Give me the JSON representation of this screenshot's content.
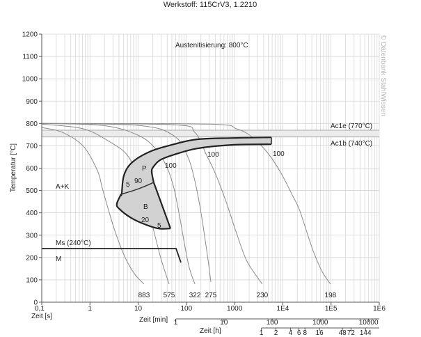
{
  "chart_data": {
    "type": "line",
    "title": "Werkstoff: 115CrV3, 1.2210",
    "subtitle": "Austenitisierung: 800°C",
    "copyright": "© Datenbank StahlWissen",
    "xlabel": "Zeit [s]",
    "ylabel": "Temperatur [°C]",
    "x_scale": "log",
    "xlim": [
      0.1,
      1000000
    ],
    "ylim": [
      0,
      1200
    ],
    "grid": true,
    "yticks": [
      "0",
      "100",
      "200",
      "300",
      "400",
      "500",
      "600",
      "700",
      "800",
      "900",
      "1000",
      "1100",
      "1200"
    ],
    "xticks": [
      {
        "value": 0.1,
        "label": "0,1"
      },
      {
        "value": 1,
        "label": "1"
      },
      {
        "value": 10,
        "label": "10"
      },
      {
        "value": 100,
        "label": "100"
      },
      {
        "value": 1000,
        "label": "1000"
      },
      {
        "value": 10000,
        "label": "1E4"
      },
      {
        "value": 100000,
        "label": "1E5"
      },
      {
        "value": 1000000,
        "label": "1E6"
      }
    ],
    "minutes_axis": {
      "label": "Zeit [min]",
      "ticks": [
        {
          "value": 1,
          "label": "1"
        },
        {
          "value": 10,
          "label": "10"
        },
        {
          "value": 100,
          "label": "100"
        },
        {
          "value": 1000,
          "label": "1000"
        },
        {
          "value": 10000,
          "label": "10000"
        }
      ]
    },
    "hours_axis": {
      "label": "Zeit [h]",
      "ticks": [
        {
          "value": 1,
          "label": "1"
        },
        {
          "value": 2,
          "label": "2"
        },
        {
          "value": 4,
          "label": "4"
        },
        {
          "value": 6,
          "label": "6"
        },
        {
          "value": 8,
          "label": "8"
        },
        {
          "value": 16,
          "label": "16"
        },
        {
          "value": 48,
          "label": "48"
        },
        {
          "value": 72,
          "label": "72"
        },
        {
          "value": 144,
          "label": "144"
        }
      ]
    },
    "reference_lines": [
      {
        "label": "Ac1e (770°C)",
        "T": 770
      },
      {
        "label": "Ac1b (740°C)",
        "T": 740
      },
      {
        "label": "Ms (240°C)",
        "T": 240,
        "t_end": 61,
        "tail": [
          [
            61,
            237
          ],
          [
            77,
            178
          ]
        ]
      }
    ],
    "cooling_curves": [
      {
        "hardness": "883",
        "points": [
          [
            0.1,
            782
          ],
          [
            0.27,
            760
          ],
          [
            0.73,
            698
          ],
          [
            1.43,
            589
          ],
          [
            1.8,
            511
          ],
          [
            2.5,
            402
          ],
          [
            3.5,
            302
          ],
          [
            5.4,
            199
          ],
          [
            8.3,
            128
          ],
          [
            13.2,
            81
          ]
        ]
      },
      {
        "hardness": "575",
        "points": [
          [
            0.1,
            797
          ],
          [
            0.73,
            776
          ],
          [
            2.8,
            713
          ],
          [
            6.0,
            657
          ],
          [
            10.5,
            558
          ],
          [
            13.2,
            511
          ],
          [
            17.3,
            417
          ],
          [
            20.4,
            333
          ],
          [
            25.7,
            246
          ],
          [
            31.3,
            178
          ],
          [
            43.8,
            81
          ]
        ]
      },
      {
        "hardness": "322",
        "points": [
          [
            0.1,
            800
          ],
          [
            2,
            790
          ],
          [
            10.5,
            745
          ],
          [
            24,
            682
          ],
          [
            39.5,
            604
          ],
          [
            55,
            511
          ],
          [
            72,
            386
          ],
          [
            91,
            262
          ],
          [
            115,
            153
          ],
          [
            150,
            81
          ]
        ]
      },
      {
        "hardness": "275",
        "points": [
          [
            0.1,
            800
          ],
          [
            10.5,
            791
          ],
          [
            55,
            745
          ],
          [
            107,
            651
          ],
          [
            150,
            542
          ],
          [
            195,
            417
          ],
          [
            246,
            277
          ],
          [
            290,
            168
          ],
          [
            321,
            90
          ]
        ]
      },
      {
        "hardness": "230",
        "points": [
          [
            0.1,
            800
          ],
          [
            55,
            794
          ],
          [
            150,
            760
          ],
          [
            263,
            657
          ],
          [
            405,
            573
          ],
          [
            667,
            449
          ],
          [
            1100,
            308
          ],
          [
            1800,
            184
          ],
          [
            3750,
            81
          ]
        ]
      },
      {
        "hardness": "198",
        "points": [
          [
            0.1,
            800
          ],
          [
            290,
            797
          ],
          [
            1100,
            776
          ],
          [
            2350,
            738
          ],
          [
            4900,
            667
          ],
          [
            8900,
            583
          ],
          [
            15700,
            480
          ],
          [
            21800,
            417
          ],
          [
            30400,
            324
          ],
          [
            42400,
            231
          ],
          [
            65300,
            137
          ],
          [
            97300,
            81
          ]
        ]
      }
    ],
    "regions": {
      "pearlite_start": [
        [
          4.4,
          483
        ],
        [
          4.56,
          486
        ],
        [
          5.05,
          567
        ],
        [
          7.5,
          626
        ],
        [
          18.4,
          676
        ],
        [
          55,
          707
        ],
        [
          165,
          729
        ],
        [
          870,
          735
        ],
        [
          5780,
          738
        ]
      ],
      "pearlite_end": [
        [
          5780,
          707
        ],
        [
          870,
          704
        ],
        [
          165,
          688
        ],
        [
          55,
          660
        ],
        [
          28.4,
          636
        ],
        [
          20.4,
          604
        ],
        [
          19.1,
          583
        ],
        [
          21,
          536
        ]
      ],
      "line_90": [
        [
          4.4,
          483
        ],
        [
          10,
          507
        ],
        [
          21,
          536
        ]
      ],
      "bainite_boundary": [
        [
          4.4,
          483
        ],
        [
          3.6,
          439
        ],
        [
          4.1,
          417
        ],
        [
          6.8,
          380
        ],
        [
          11.6,
          355
        ],
        [
          25.7,
          330
        ],
        [
          46.8,
          330
        ]
      ],
      "bainite_end": [
        [
          46.8,
          330
        ],
        [
          21,
          536
        ]
      ]
    },
    "annotations": {
      "ak": "A+K",
      "p": "P",
      "b": "B",
      "m": "M",
      "p5": "5",
      "p90": "90",
      "b20": "20",
      "b5": "5",
      "c100a": "100",
      "c100b": "100",
      "c100c": "100"
    }
  }
}
